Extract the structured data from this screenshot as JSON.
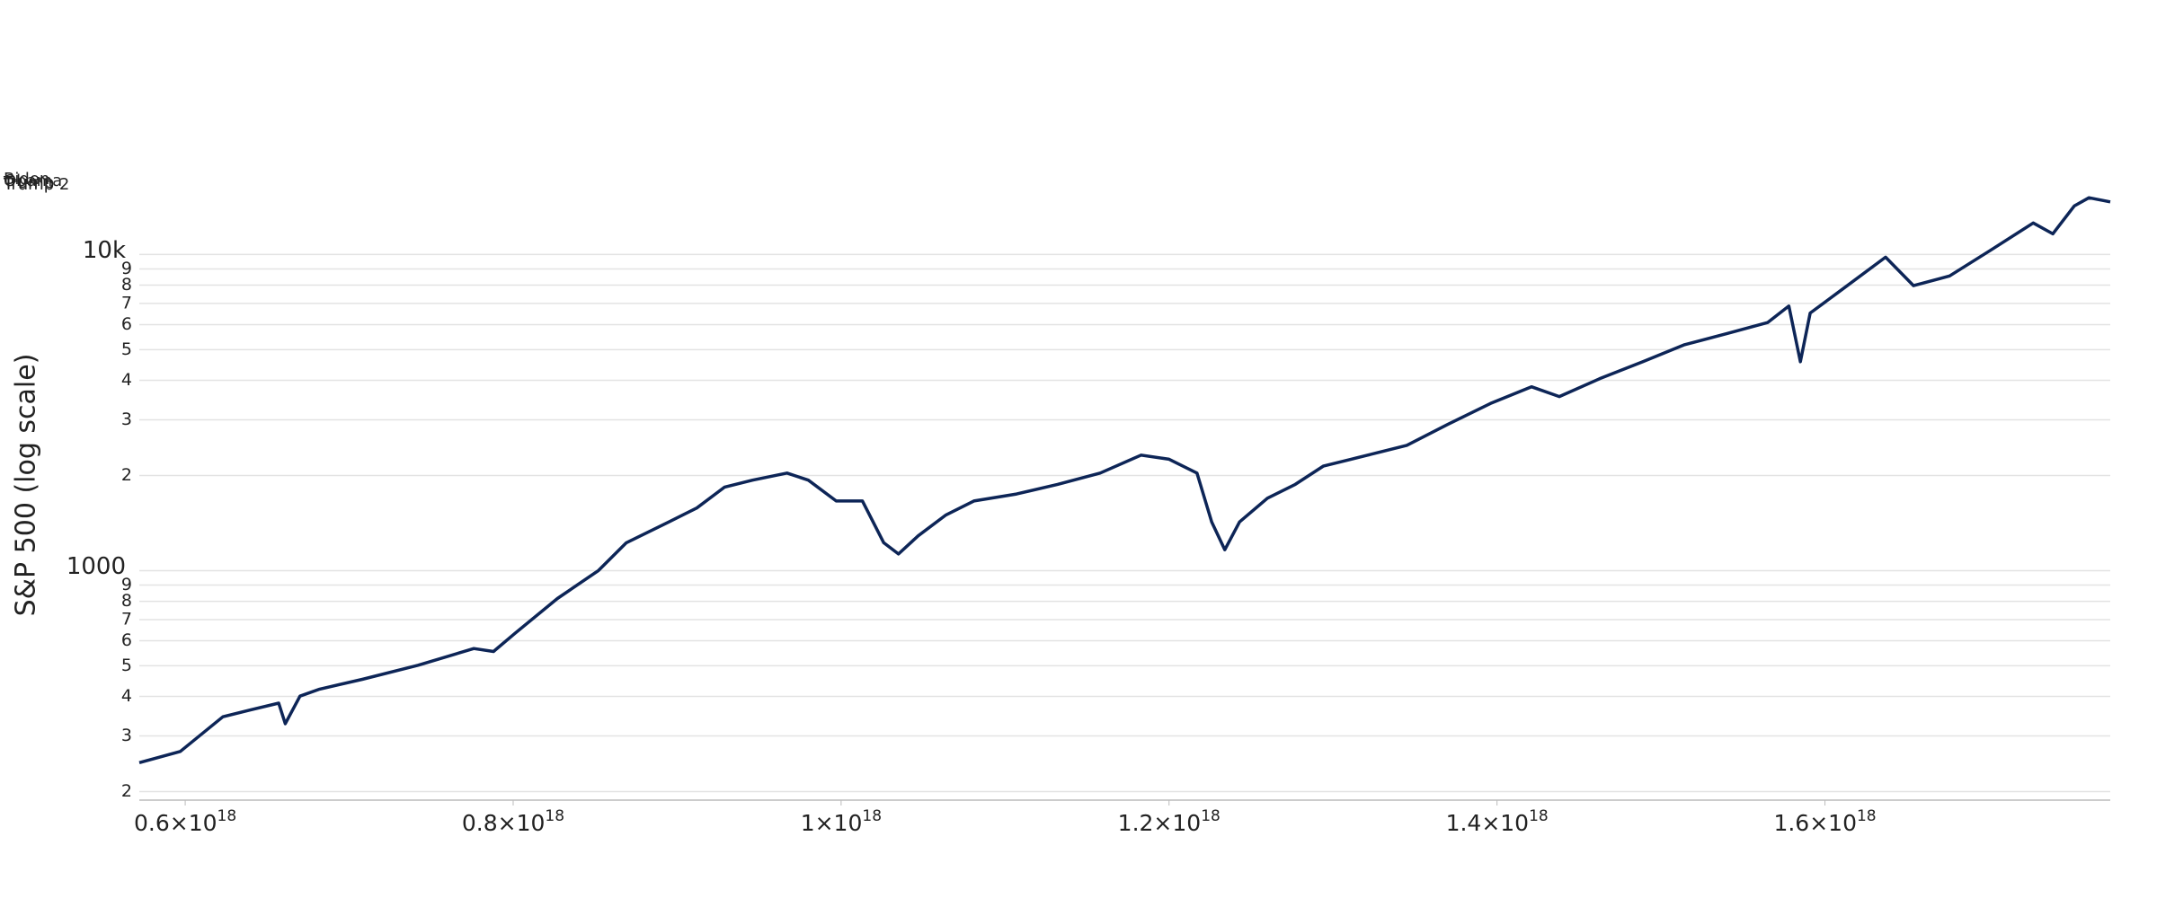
{
  "chart_data": {
    "type": "line",
    "ylabel": "S&P 500 (log scale)",
    "log_y": true,
    "grid": true,
    "annotations": [
      {
        "text": "Biden",
        "color": "#4a7fc1"
      },
      {
        "text": "Obama",
        "color": "#4a7fc1"
      },
      {
        "text": "Trump",
        "color": "#d62728"
      },
      {
        "text": "Trump 2",
        "color": "#d62728"
      }
    ],
    "xlim": [
      5.72e+17,
      1.774e+18
    ],
    "xticks": [
      {
        "value": 6e+17,
        "label": "0.6×10",
        "sup": "18"
      },
      {
        "value": 8e+17,
        "label": "0.8×10",
        "sup": "18"
      },
      {
        "value": 1e+18,
        "label": "1×10",
        "sup": "18"
      },
      {
        "value": 1.2e+18,
        "label": "1.2×10",
        "sup": "18"
      },
      {
        "value": 1.4e+18,
        "label": "1.4×10",
        "sup": "18"
      },
      {
        "value": 1.6e+18,
        "label": "1.6×10",
        "sup": "18"
      }
    ],
    "ylim": [
      188,
      23000
    ],
    "yticks": [
      {
        "value": 200,
        "label": "2"
      },
      {
        "value": 300,
        "label": "3"
      },
      {
        "value": 400,
        "label": "4"
      },
      {
        "value": 500,
        "label": "5"
      },
      {
        "value": 600,
        "label": "6"
      },
      {
        "value": 700,
        "label": "7"
      },
      {
        "value": 800,
        "label": "8"
      },
      {
        "value": 900,
        "label": "9"
      },
      1000,
      {
        "value": 2000,
        "label": "2"
      },
      {
        "value": 3000,
        "label": "3"
      },
      {
        "value": 4000,
        "label": "4"
      },
      {
        "value": 5000,
        "label": "5"
      },
      {
        "value": 6000,
        "label": "6"
      },
      {
        "value": 7000,
        "label": "7"
      },
      {
        "value": 8000,
        "label": "8"
      },
      {
        "value": 9000,
        "label": "9"
      },
      {
        "value": 10000,
        "label": "10k"
      }
    ],
    "series": [
      {
        "name": "S&P 500",
        "color": "#0d2557",
        "x": [
          5.72e+17,
          5.97e+17,
          6.23e+17,
          6.4e+17,
          6.57e+17,
          6.61e+17,
          6.7e+17,
          6.82e+17,
          7.08e+17,
          7.42e+17,
          7.76e+17,
          7.88e+17,
          8.01e+17,
          8.27e+17,
          8.52e+17,
          8.69e+17,
          8.95e+17,
          9.12e+17,
          9.29e+17,
          9.46e+17,
          9.67e+17,
          9.8e+17,
          9.97e+17,
          1.013e+18,
          1.026e+18,
          1.035e+18,
          1.047e+18,
          1.064e+18,
          1.081e+18,
          1.107e+18,
          1.132e+18,
          1.158e+18,
          1.183e+18,
          1.2e+18,
          1.217e+18,
          1.226e+18,
          1.234e+18,
          1.243e+18,
          1.26e+18,
          1.277e+18,
          1.294e+18,
          1.311e+18,
          1.328e+18,
          1.345e+18,
          1.37e+18,
          1.396e+18,
          1.421e+18,
          1.438e+18,
          1.463e+18,
          1.489e+18,
          1.514e+18,
          1.54e+18,
          1.565e+18,
          1.578e+18,
          1.585e+18,
          1.591e+18,
          1.608e+18,
          1.637e+18,
          1.654e+18,
          1.676e+18,
          1.701e+18,
          1.727e+18,
          1.739e+18,
          1.752e+18,
          1.761e+18,
          1.774e+18
        ],
        "values": [
          247,
          268,
          345,
          363,
          381,
          328,
          401,
          422,
          453,
          502,
          567,
          555,
          633,
          816,
          1000,
          1225,
          1426,
          1578,
          1838,
          1933,
          2035,
          1933,
          1660,
          1660,
          1225,
          1129,
          1288,
          1500,
          1660,
          1747,
          1874,
          2035,
          2319,
          2250,
          2035,
          1426,
          1164,
          1426,
          1695,
          1874,
          2140,
          2250,
          2367,
          2490,
          2901,
          3378,
          3816,
          3552,
          4055,
          4580,
          5175,
          5614,
          6089,
          6867,
          4580,
          6526,
          7583,
          9800,
          7970,
          8550,
          10310,
          12580,
          11620,
          14230,
          15110,
          14670
        ]
      }
    ]
  }
}
